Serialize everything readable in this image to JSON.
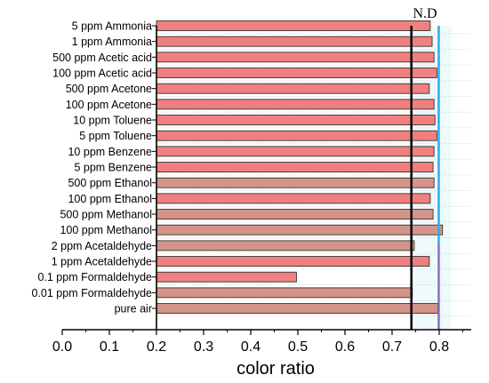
{
  "chart_data": {
    "type": "bar",
    "orientation": "horizontal",
    "xlabel": "color ratio",
    "xlim": [
      0.0,
      0.8
    ],
    "xticks": [
      "0.0",
      "0.1",
      "0.2",
      "0.3",
      "0.4",
      "0.5",
      "0.6",
      "0.7",
      "0.8"
    ],
    "bar_baseline": 0.2,
    "grid": false,
    "categories": [
      "5 ppm Ammonia",
      "1 ppm Ammonia",
      "500 ppm Acetic acid",
      "100 ppm Acetic acid",
      "500 ppm Acetone",
      "100 ppm Acetone",
      "10 ppm  Toluene",
      "5 ppm Toluene",
      "10 ppm Benzene",
      "5 ppm Benzene",
      "500 ppm  Ethanol",
      "100 ppm Ethanol",
      "500 ppm  Methanol",
      "100 ppm Methanol",
      "2 ppm Acetaldehyde",
      "1 ppm  Acetaldehyde",
      "0.1 ppm Formaldehyde",
      "0.01 ppm  Formaldehyde",
      "pure air"
    ],
    "values": [
      0.781,
      0.785,
      0.789,
      0.795,
      0.779,
      0.789,
      0.791,
      0.795,
      0.789,
      0.787,
      0.789,
      0.781,
      0.787,
      0.807,
      0.747,
      0.779,
      0.497,
      0.743,
      0.797
    ],
    "annotation": {
      "text": "N.D",
      "lines": [
        0.741,
        0.799
      ]
    },
    "colors": {
      "bar_light": "#f08080",
      "bar_muted": "#d4948a",
      "bar_edge": "#222222",
      "black_line": "#000000",
      "blue_line": "#2aaee8",
      "purple_line": "#8a6ec8",
      "band_fill": "#eefafc"
    },
    "bar_color_keys": [
      "bar_light",
      "bar_light",
      "bar_light",
      "bar_light",
      "bar_light",
      "bar_light",
      "bar_light",
      "bar_light",
      "bar_light",
      "bar_light",
      "bar_muted",
      "bar_light",
      "bar_muted",
      "bar_muted",
      "bar_muted",
      "bar_light",
      "bar_light",
      "bar_muted",
      "bar_muted"
    ]
  }
}
